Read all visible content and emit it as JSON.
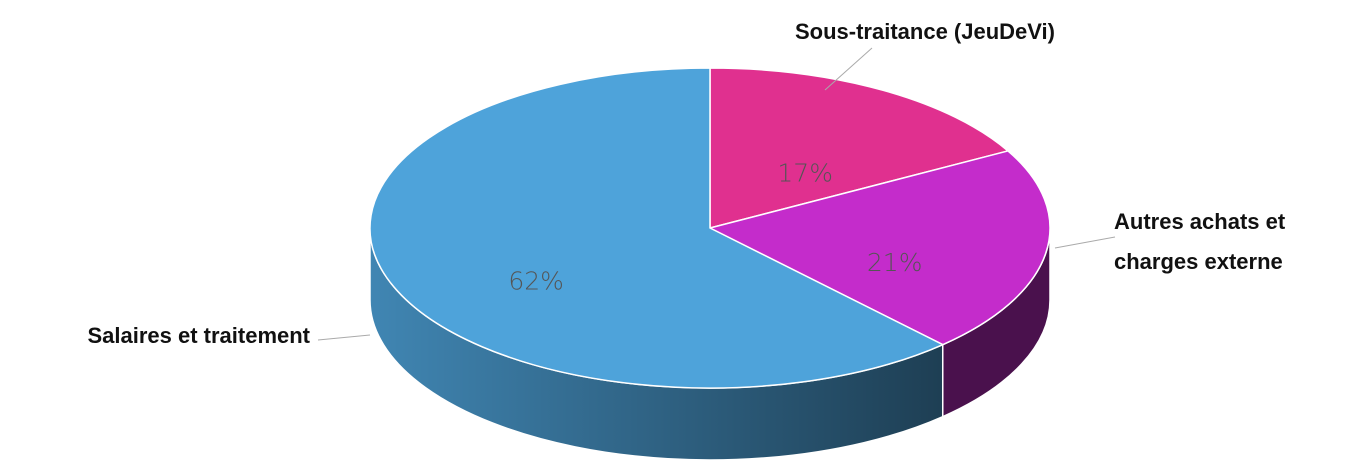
{
  "chart_data": {
    "type": "pie",
    "categories": [
      "Sous-traitance (JeuDeVi)",
      "Autres achats et charges externe",
      "Salaires et traitement"
    ],
    "values": [
      17,
      21,
      62
    ],
    "value_labels": [
      "17%",
      "21%",
      "62%"
    ],
    "colors": [
      "#e0308f",
      "#c42ccb",
      "#4ea3da"
    ]
  }
}
